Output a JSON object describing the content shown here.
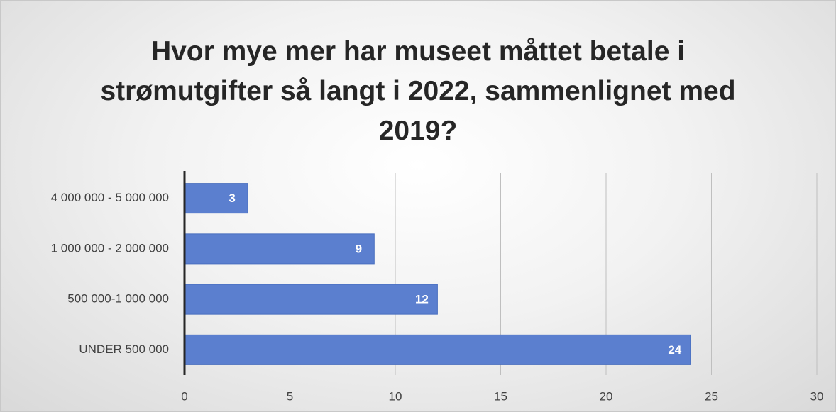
{
  "chart_data": {
    "type": "hbar",
    "title": "Hvor mye mer har museet måttet betale i strømutgifter så langt i 2022, sammenlignet med 2019?",
    "categories": [
      "4 000 000 - 5 000 000",
      "1 000 000 - 2 000 000",
      "500 000-1 000 000",
      "UNDER 500 000"
    ],
    "values": [
      3,
      9,
      12,
      24
    ],
    "color": "#5b7fcf",
    "xlim": [
      0,
      30
    ],
    "xticks": [
      0,
      5,
      10,
      15,
      20,
      25,
      30
    ],
    "grid": true
  }
}
